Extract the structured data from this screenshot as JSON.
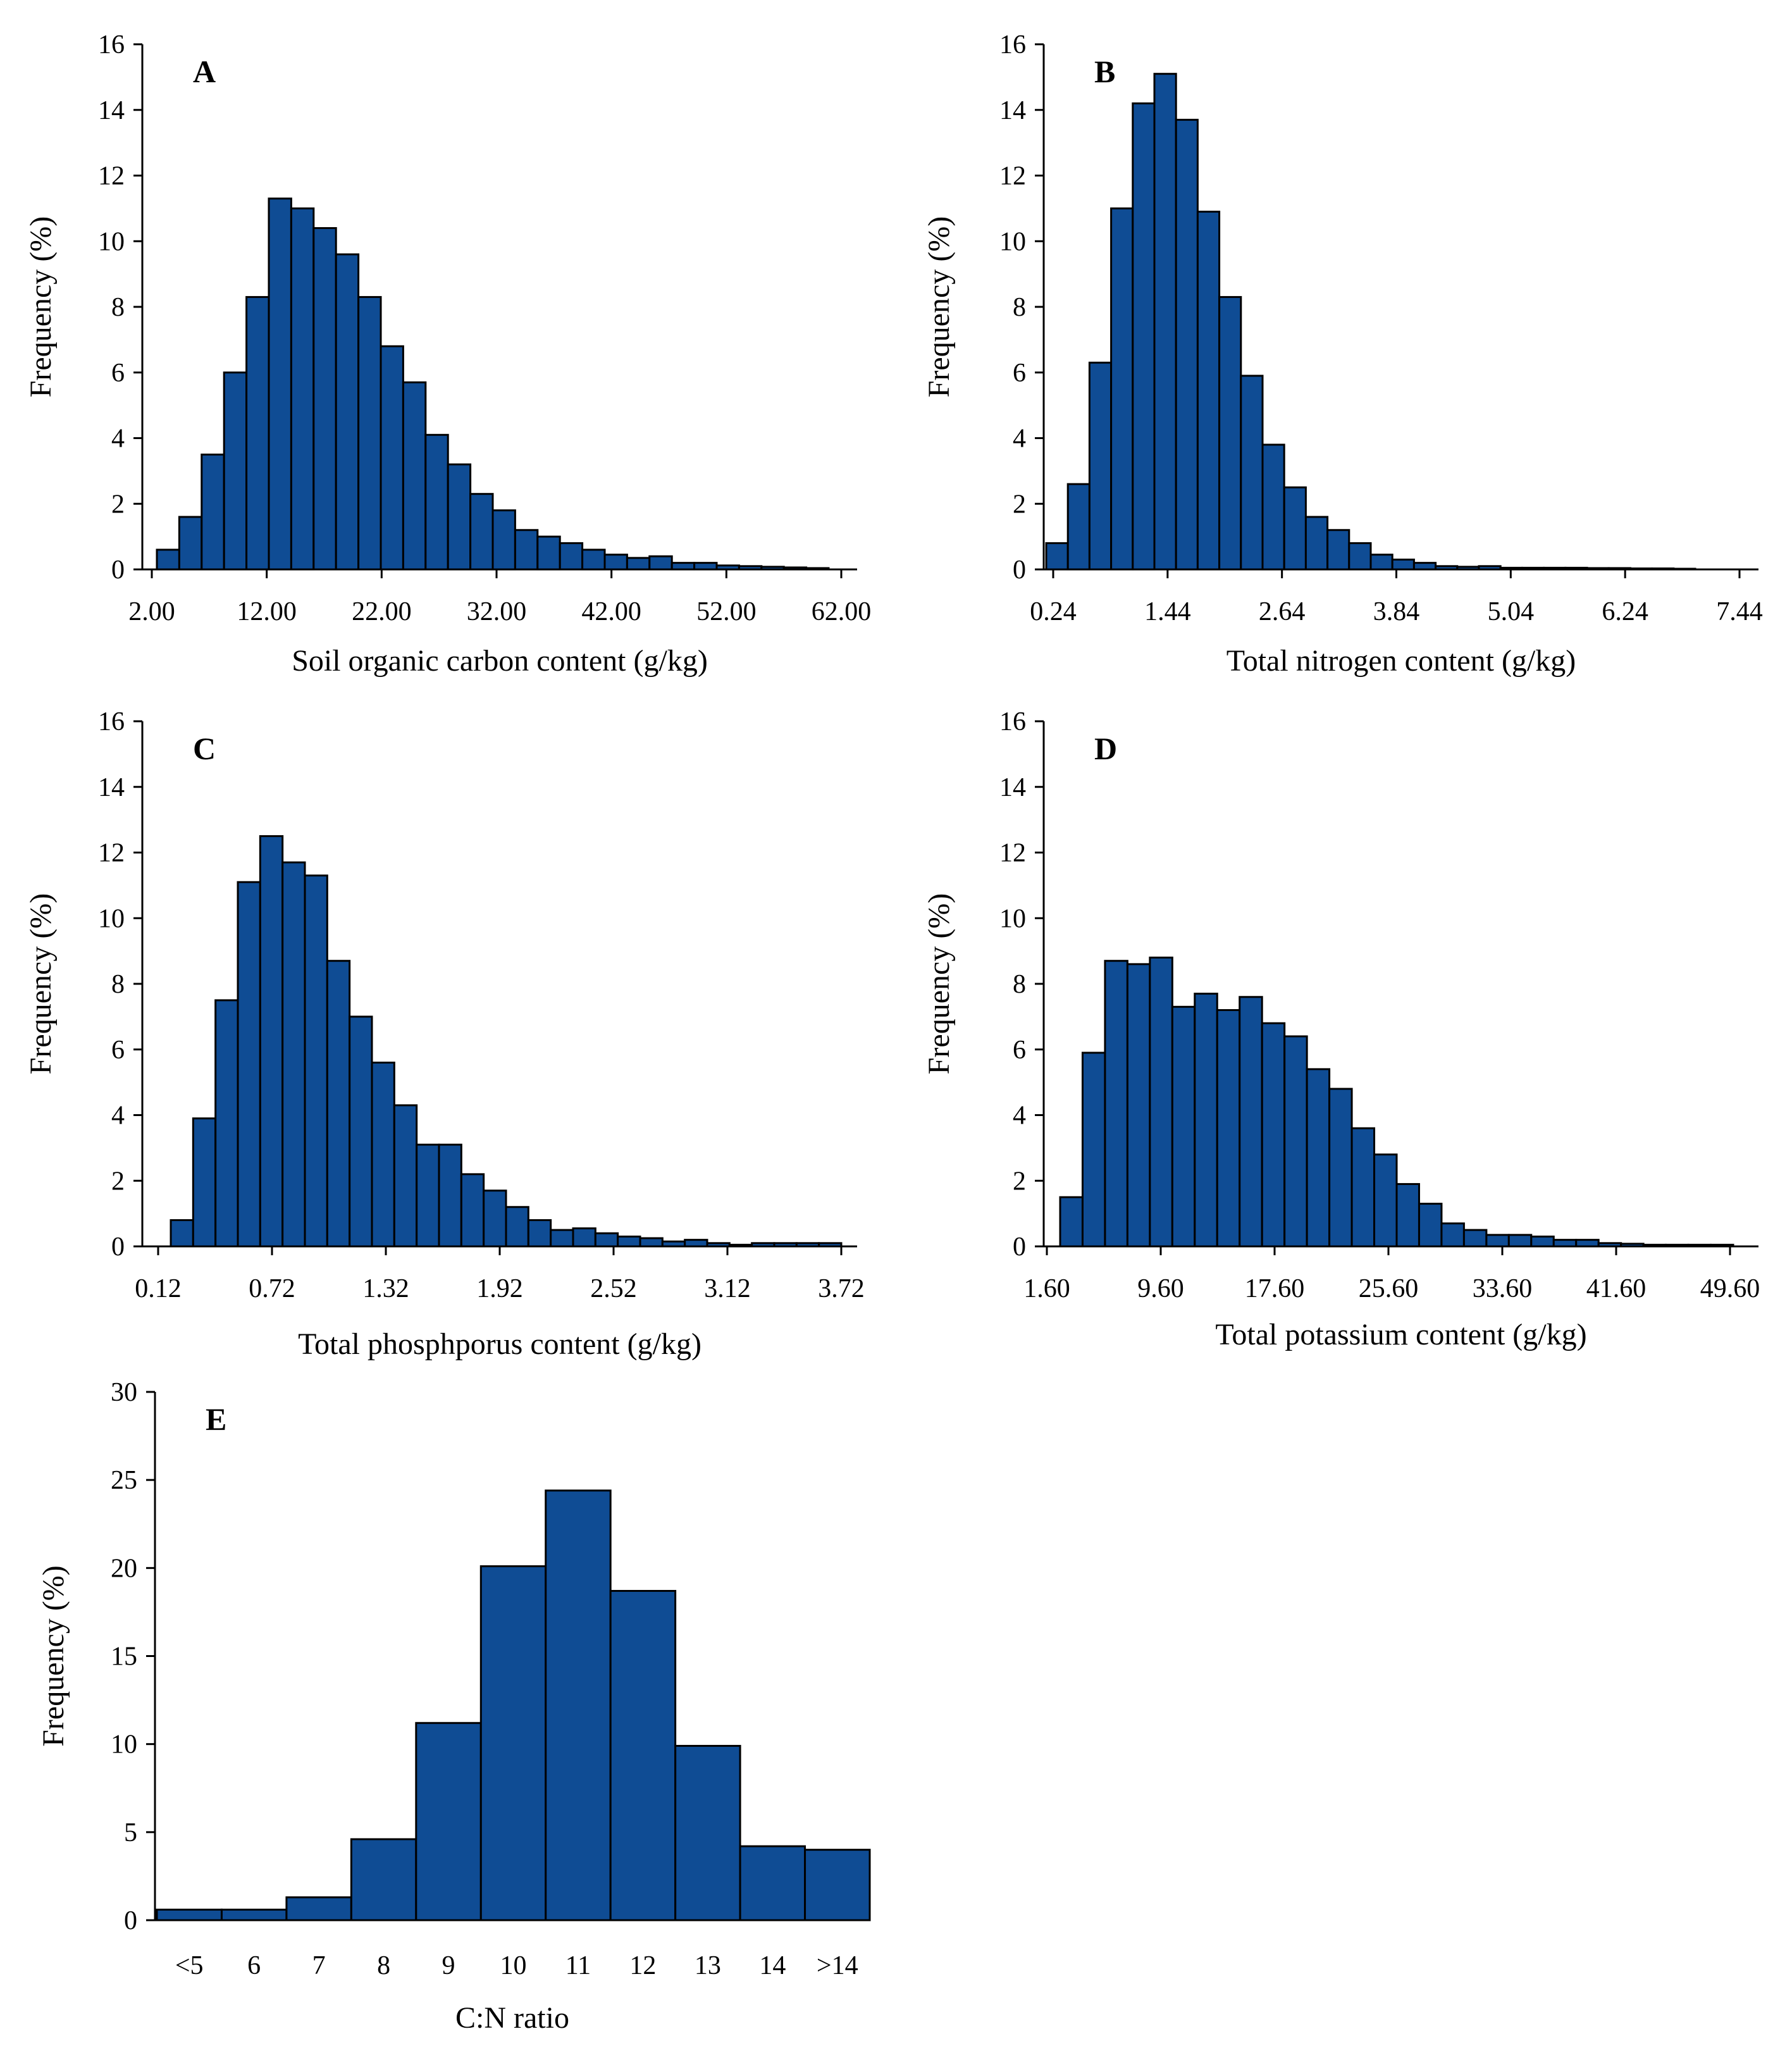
{
  "colors": {
    "bar_fill": "#0F4C94",
    "bar_edge": "#000000",
    "axis": "#000000"
  },
  "chart_data": [
    {
      "id": "A",
      "type": "bar",
      "panel_label": "A",
      "xlabel": "Soil  organic  carbon content  (g/kg)",
      "ylabel": "Frequency (%)",
      "ylim": [
        0,
        16
      ],
      "yticks": [
        "0",
        "2",
        "4",
        "6",
        "8",
        "10",
        "12",
        "14",
        "16"
      ],
      "xticks": [
        "2.00",
        "12.00",
        "22.00",
        "32.00",
        "42.00",
        "52.00",
        "62.00"
      ],
      "values": [
        0.6,
        1.6,
        3.5,
        6.0,
        8.3,
        11.3,
        11.0,
        10.4,
        9.6,
        8.3,
        6.8,
        5.7,
        4.1,
        3.2,
        2.3,
        1.8,
        1.2,
        1.0,
        0.8,
        0.6,
        0.45,
        0.35,
        0.4,
        0.2,
        0.2,
        0.12,
        0.1,
        0.08,
        0.06,
        0.04
      ]
    },
    {
      "id": "B",
      "type": "bar",
      "panel_label": "B",
      "xlabel": "Total  nitrogen   content  (g/kg)",
      "ylabel": "Frequency (%)",
      "ylim": [
        0,
        16
      ],
      "yticks": [
        "0",
        "2",
        "4",
        "6",
        "8",
        "10",
        "12",
        "14",
        "16"
      ],
      "xticks": [
        "0.24",
        "1.44",
        "2.64",
        "3.84",
        "5.04",
        "6.24",
        "7.44"
      ],
      "values": [
        0.8,
        2.6,
        6.3,
        11.0,
        14.2,
        15.1,
        13.7,
        10.9,
        8.3,
        5.9,
        3.8,
        2.5,
        1.6,
        1.2,
        0.8,
        0.45,
        0.3,
        0.2,
        0.1,
        0.08,
        0.1,
        0.05,
        0.05,
        0.05,
        0.05,
        0.04,
        0.04,
        0.03,
        0.03,
        0.02
      ]
    },
    {
      "id": "C",
      "type": "bar",
      "panel_label": "C",
      "xlabel": "Total  phosphporus  content  (g/kg)",
      "ylabel": "Frequency (%)",
      "ylim": [
        0,
        16
      ],
      "yticks": [
        "0",
        "2",
        "4",
        "6",
        "8",
        "10",
        "12",
        "14",
        "16"
      ],
      "xticks": [
        "0.12",
        "0.72",
        "1.32",
        "1.92",
        "2.52",
        "3.12",
        "3.72"
      ],
      "values": [
        0.8,
        3.9,
        7.5,
        11.1,
        12.5,
        11.7,
        11.3,
        8.7,
        7.0,
        5.6,
        4.3,
        3.1,
        3.1,
        2.2,
        1.7,
        1.2,
        0.8,
        0.5,
        0.55,
        0.4,
        0.3,
        0.25,
        0.15,
        0.2,
        0.1,
        0.05,
        0.1,
        0.1,
        0.1,
        0.1
      ]
    },
    {
      "id": "D",
      "type": "bar",
      "panel_label": "D",
      "xlabel": "Total potassium   content  (g/kg)",
      "ylabel": "Frequency (%)",
      "ylim": [
        0,
        16
      ],
      "yticks": [
        "0",
        "2",
        "4",
        "6",
        "8",
        "10",
        "12",
        "14",
        "16"
      ],
      "xticks": [
        "1.60",
        "9.60",
        "17.60",
        "25.60",
        "33.60",
        "41.60",
        "49.60"
      ],
      "values": [
        1.5,
        5.9,
        8.7,
        8.6,
        8.8,
        7.3,
        7.7,
        7.2,
        7.6,
        6.8,
        6.4,
        5.4,
        4.8,
        3.6,
        2.8,
        1.9,
        1.3,
        0.7,
        0.5,
        0.35,
        0.35,
        0.3,
        0.2,
        0.2,
        0.1,
        0.08,
        0.05,
        0.05,
        0.05,
        0.05
      ]
    },
    {
      "id": "E",
      "type": "bar",
      "panel_label": "E",
      "xlabel": "C:N ratio",
      "ylabel": "Frequency (%)",
      "ylim": [
        0,
        30
      ],
      "yticks": [
        "0",
        "5",
        "10",
        "15",
        "20",
        "25",
        "30"
      ],
      "categories": [
        "<5",
        "6",
        "7",
        "8",
        "9",
        "10",
        "11",
        "12",
        "13",
        "14",
        ">14"
      ],
      "values": [
        0.6,
        0.6,
        1.3,
        4.6,
        11.2,
        20.1,
        24.4,
        18.7,
        9.9,
        4.2,
        4.0
      ]
    }
  ]
}
